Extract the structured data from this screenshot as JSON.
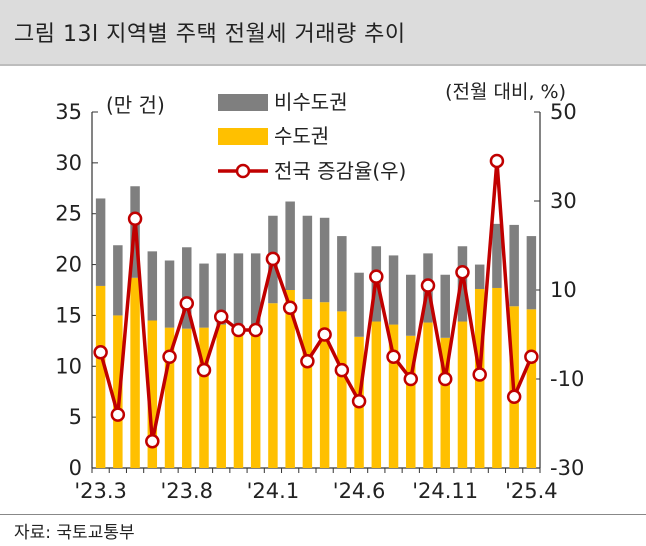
{
  "title": "그림 13l 지역별 주택 전월세 거래량 추이",
  "source": "자료: 국토교통부",
  "colors": {
    "non_capital": "#7f7f7f",
    "capital": "#ffc000",
    "growth_line": "#c00000",
    "marker_fill": "#ffffff"
  },
  "chart_data": {
    "type": "bar",
    "stacked": true,
    "left_axis_label": "(만 건)",
    "right_axis_label": "(전월 대비, %)",
    "ylim_left": [
      0,
      35
    ],
    "yticks_left": [
      "0",
      "5",
      "10",
      "15",
      "20",
      "25",
      "30",
      "35"
    ],
    "ylim_right": [
      -30,
      50
    ],
    "yticks_right": [
      "-30",
      "-10",
      "10",
      "30",
      "50"
    ],
    "categories": [
      "'23.3",
      "'23.4",
      "'23.5",
      "'23.6",
      "'23.7",
      "'23.8",
      "'23.9",
      "'23.10",
      "'23.11",
      "'23.12",
      "'24.1",
      "'24.2",
      "'24.3",
      "'24.4",
      "'24.5",
      "'24.6",
      "'24.7",
      "'24.8",
      "'24.9",
      "'24.10",
      "'24.11",
      "'24.12",
      "'25.1",
      "'25.2",
      "'25.3",
      "'25.4"
    ],
    "xtick_labels": [
      "'23.3",
      "'23.8",
      "'24.1",
      "'24.6",
      "'24.11",
      "'25.4"
    ],
    "xtick_indices": [
      0,
      5,
      10,
      15,
      20,
      25
    ],
    "series": [
      {
        "name": "비수도권",
        "axis": "left",
        "values": [
          8.6,
          6.9,
          9.0,
          6.8,
          6.6,
          8.0,
          6.3,
          7.0,
          7.0,
          7.1,
          8.6,
          8.7,
          8.2,
          8.3,
          7.4,
          6.3,
          7.4,
          6.8,
          6.0,
          6.8,
          6.2,
          7.4,
          2.4,
          6.3,
          8.0,
          7.2
        ]
      },
      {
        "name": "수도권",
        "axis": "left",
        "values": [
          17.9,
          15.0,
          18.7,
          14.5,
          13.8,
          13.7,
          13.8,
          14.1,
          14.1,
          14.0,
          16.2,
          17.5,
          16.6,
          16.3,
          15.4,
          12.9,
          14.4,
          14.1,
          13.0,
          14.3,
          12.8,
          14.4,
          17.6,
          17.7,
          15.9,
          15.6
        ]
      },
      {
        "name": "전국 증감율(우)",
        "axis": "right",
        "type": "line",
        "values": [
          -4,
          -18,
          26,
          -24,
          -5,
          7,
          -8,
          4,
          1,
          1,
          17,
          6,
          -6,
          0,
          -8,
          -15,
          13,
          -5,
          -10,
          11,
          -10,
          14,
          -9,
          39,
          -14,
          -5
        ]
      }
    ],
    "legend_position": "top-center",
    "grid": false
  }
}
